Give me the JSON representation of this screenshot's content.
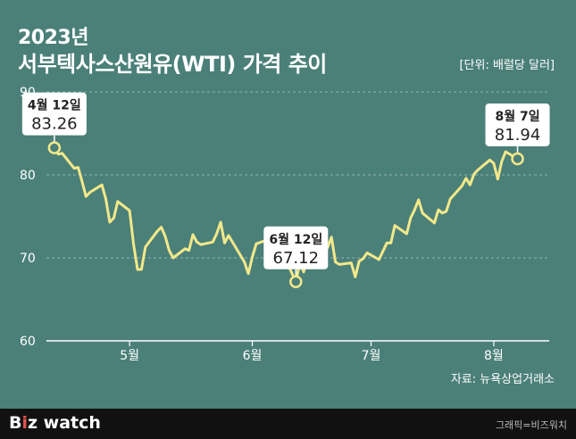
{
  "header": {
    "year": "2023년",
    "title": "서부텍사스산원유(WTI) 가격 추이",
    "unit": "[단위: 배럴당 달러]"
  },
  "source": "자료: 뉴욕상업거래소",
  "footer": {
    "brand_main": "B",
    "brand_accent": "i",
    "brand_rest": "z watch",
    "credit": "그래픽=비즈워치"
  },
  "colors": {
    "background": "#4b8079",
    "line": "#f2e88a",
    "grid": "#8fb3ad",
    "text": "#ffffff"
  },
  "chart_data": {
    "type": "line",
    "title": "서부텍사스산원유(WTI) 가격 추이",
    "ylabel": "[단위: 배럴당 달러]",
    "ylim": [
      60,
      90
    ],
    "yticks": [
      60,
      70,
      80,
      90
    ],
    "xticks": [
      {
        "label": "5월",
        "date": "2023-05-01"
      },
      {
        "label": "6월",
        "date": "2023-06-01"
      },
      {
        "label": "7월",
        "date": "2023-07-01"
      },
      {
        "label": "8월",
        "date": "2023-08-01"
      }
    ],
    "xlim": [
      "2023-04-10",
      "2023-08-15"
    ],
    "grid": true,
    "series": [
      {
        "points": [
          [
            "2023-04-12",
            83.26
          ],
          [
            "2023-04-13",
            82.5
          ],
          [
            "2023-04-14",
            82.6
          ],
          [
            "2023-04-17",
            80.8
          ],
          [
            "2023-04-18",
            80.9
          ],
          [
            "2023-04-19",
            79.2
          ],
          [
            "2023-04-20",
            77.4
          ],
          [
            "2023-04-21",
            77.9
          ],
          [
            "2023-04-24",
            78.8
          ],
          [
            "2023-04-25",
            77.1
          ],
          [
            "2023-04-26",
            74.3
          ],
          [
            "2023-04-27",
            74.8
          ],
          [
            "2023-04-28",
            76.8
          ],
          [
            "2023-05-01",
            75.7
          ],
          [
            "2023-05-02",
            71.7
          ],
          [
            "2023-05-03",
            68.6
          ],
          [
            "2023-05-04",
            68.6
          ],
          [
            "2023-05-05",
            71.3
          ],
          [
            "2023-05-08",
            73.2
          ],
          [
            "2023-05-09",
            73.7
          ],
          [
            "2023-05-10",
            72.6
          ],
          [
            "2023-05-11",
            70.9
          ],
          [
            "2023-05-12",
            70.0
          ],
          [
            "2023-05-15",
            71.1
          ],
          [
            "2023-05-16",
            70.9
          ],
          [
            "2023-05-17",
            72.8
          ],
          [
            "2023-05-18",
            71.9
          ],
          [
            "2023-05-19",
            71.6
          ],
          [
            "2023-05-22",
            71.9
          ],
          [
            "2023-05-23",
            72.9
          ],
          [
            "2023-05-24",
            74.3
          ],
          [
            "2023-05-25",
            71.8
          ],
          [
            "2023-05-26",
            72.7
          ],
          [
            "2023-05-30",
            69.5
          ],
          [
            "2023-05-31",
            68.1
          ],
          [
            "2023-06-01",
            70.1
          ],
          [
            "2023-06-02",
            71.7
          ],
          [
            "2023-06-05",
            72.2
          ],
          [
            "2023-06-06",
            71.7
          ],
          [
            "2023-06-07",
            72.5
          ],
          [
            "2023-06-08",
            71.3
          ],
          [
            "2023-06-09",
            70.2
          ],
          [
            "2023-06-12",
            67.12
          ],
          [
            "2023-06-13",
            69.4
          ],
          [
            "2023-06-14",
            68.3
          ],
          [
            "2023-06-15",
            70.6
          ],
          [
            "2023-06-16",
            71.8
          ],
          [
            "2023-06-20",
            71.2
          ],
          [
            "2023-06-21",
            72.5
          ],
          [
            "2023-06-22",
            69.5
          ],
          [
            "2023-06-23",
            69.2
          ],
          [
            "2023-06-26",
            69.4
          ],
          [
            "2023-06-27",
            67.7
          ],
          [
            "2023-06-28",
            69.6
          ],
          [
            "2023-06-29",
            69.9
          ],
          [
            "2023-06-30",
            70.6
          ],
          [
            "2023-07-03",
            69.8
          ],
          [
            "2023-07-05",
            71.8
          ],
          [
            "2023-07-06",
            71.8
          ],
          [
            "2023-07-07",
            73.9
          ],
          [
            "2023-07-10",
            72.9
          ],
          [
            "2023-07-11",
            74.8
          ],
          [
            "2023-07-12",
            75.8
          ],
          [
            "2023-07-13",
            77.0
          ],
          [
            "2023-07-14",
            75.4
          ],
          [
            "2023-07-17",
            74.2
          ],
          [
            "2023-07-18",
            75.8
          ],
          [
            "2023-07-19",
            75.4
          ],
          [
            "2023-07-20",
            75.6
          ],
          [
            "2023-07-21",
            77.1
          ],
          [
            "2023-07-24",
            78.7
          ],
          [
            "2023-07-25",
            79.6
          ],
          [
            "2023-07-26",
            78.8
          ],
          [
            "2023-07-27",
            80.1
          ],
          [
            "2023-07-28",
            80.6
          ],
          [
            "2023-07-31",
            81.8
          ],
          [
            "2023-08-01",
            81.4
          ],
          [
            "2023-08-02",
            79.5
          ],
          [
            "2023-08-03",
            81.6
          ],
          [
            "2023-08-04",
            82.8
          ],
          [
            "2023-08-07",
            81.94
          ]
        ]
      }
    ],
    "annotations": [
      {
        "date_label": "4월 12일",
        "value": "83.26",
        "date": "2023-04-12",
        "y": 83.26
      },
      {
        "date_label": "6월 12일",
        "value": "67.12",
        "date": "2023-06-12",
        "y": 67.12
      },
      {
        "date_label": "8월 7일",
        "value": "81.94",
        "date": "2023-08-07",
        "y": 81.94
      }
    ]
  }
}
